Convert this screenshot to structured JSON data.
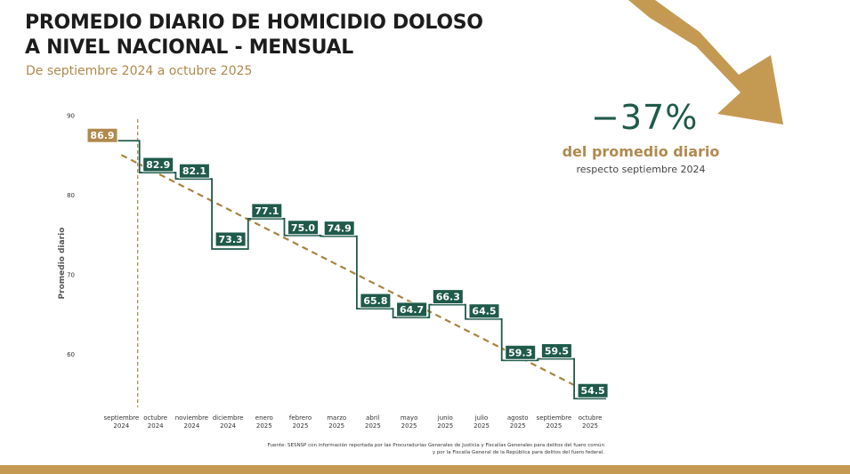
{
  "header": {
    "title_line1": "PROMEDIO DIARIO DE HOMICIDIO DOLOSO",
    "title_line2": "A NIVEL NACIONAL - MENSUAL",
    "subtitle": "De septiembre 2024 a octubre 2025"
  },
  "kpi": {
    "value": "−37%",
    "label": "del promedio diario",
    "sublabel": "respecto septiembre 2024"
  },
  "source": {
    "line1": "Fuente: SESNSP con información reportada por las Procuradurías Generales de Justicia y Fiscalías Generales para delitos del fuero común",
    "line2": "y por la Fiscalía General de la República para delitos del fuero federal."
  },
  "colors": {
    "step_line": "#1f5a4a",
    "trend_line": "#a8843f",
    "label_green": "#1f5a4a",
    "label_gold": "#b08a4e",
    "bottom_bar": "#c49a53"
  },
  "chart_data": {
    "type": "line",
    "style": "step",
    "ylabel": "Promedio diario",
    "xlabel": "",
    "ylim": [
      55,
      90
    ],
    "yticks": [
      60,
      70,
      80,
      90
    ],
    "grid": false,
    "categories": [
      [
        "septiembre",
        "2024"
      ],
      [
        "octubre",
        "2024"
      ],
      [
        "noviembre",
        "2024"
      ],
      [
        "diciembre",
        "2024"
      ],
      [
        "enero",
        "2025"
      ],
      [
        "febrero",
        "2025"
      ],
      [
        "marzo",
        "2025"
      ],
      [
        "abril",
        "2025"
      ],
      [
        "mayo",
        "2025"
      ],
      [
        "junio",
        "2025"
      ],
      [
        "julio",
        "2025"
      ],
      [
        "agosto",
        "2025"
      ],
      [
        "septiembre",
        "2025"
      ],
      [
        "octubre",
        "2025"
      ]
    ],
    "series": [
      {
        "values": [
          86.9,
          82.9,
          82.1,
          73.3,
          77.1,
          75.0,
          74.9,
          65.8,
          64.7,
          66.3,
          64.5,
          59.3,
          59.5,
          54.5
        ],
        "labels": [
          "86.9",
          "82.9",
          "82.1",
          "73.3",
          "77.1",
          "75.0",
          "74.9",
          "65.8",
          "64.7",
          "66.3",
          "64.5",
          "59.3",
          "59.5",
          "54.5"
        ]
      }
    ],
    "trend_line": {
      "from": 86.9,
      "to": 54.5,
      "style": "dashed"
    },
    "reference_line": {
      "category_index": 0,
      "style": "dashed vertical"
    }
  }
}
